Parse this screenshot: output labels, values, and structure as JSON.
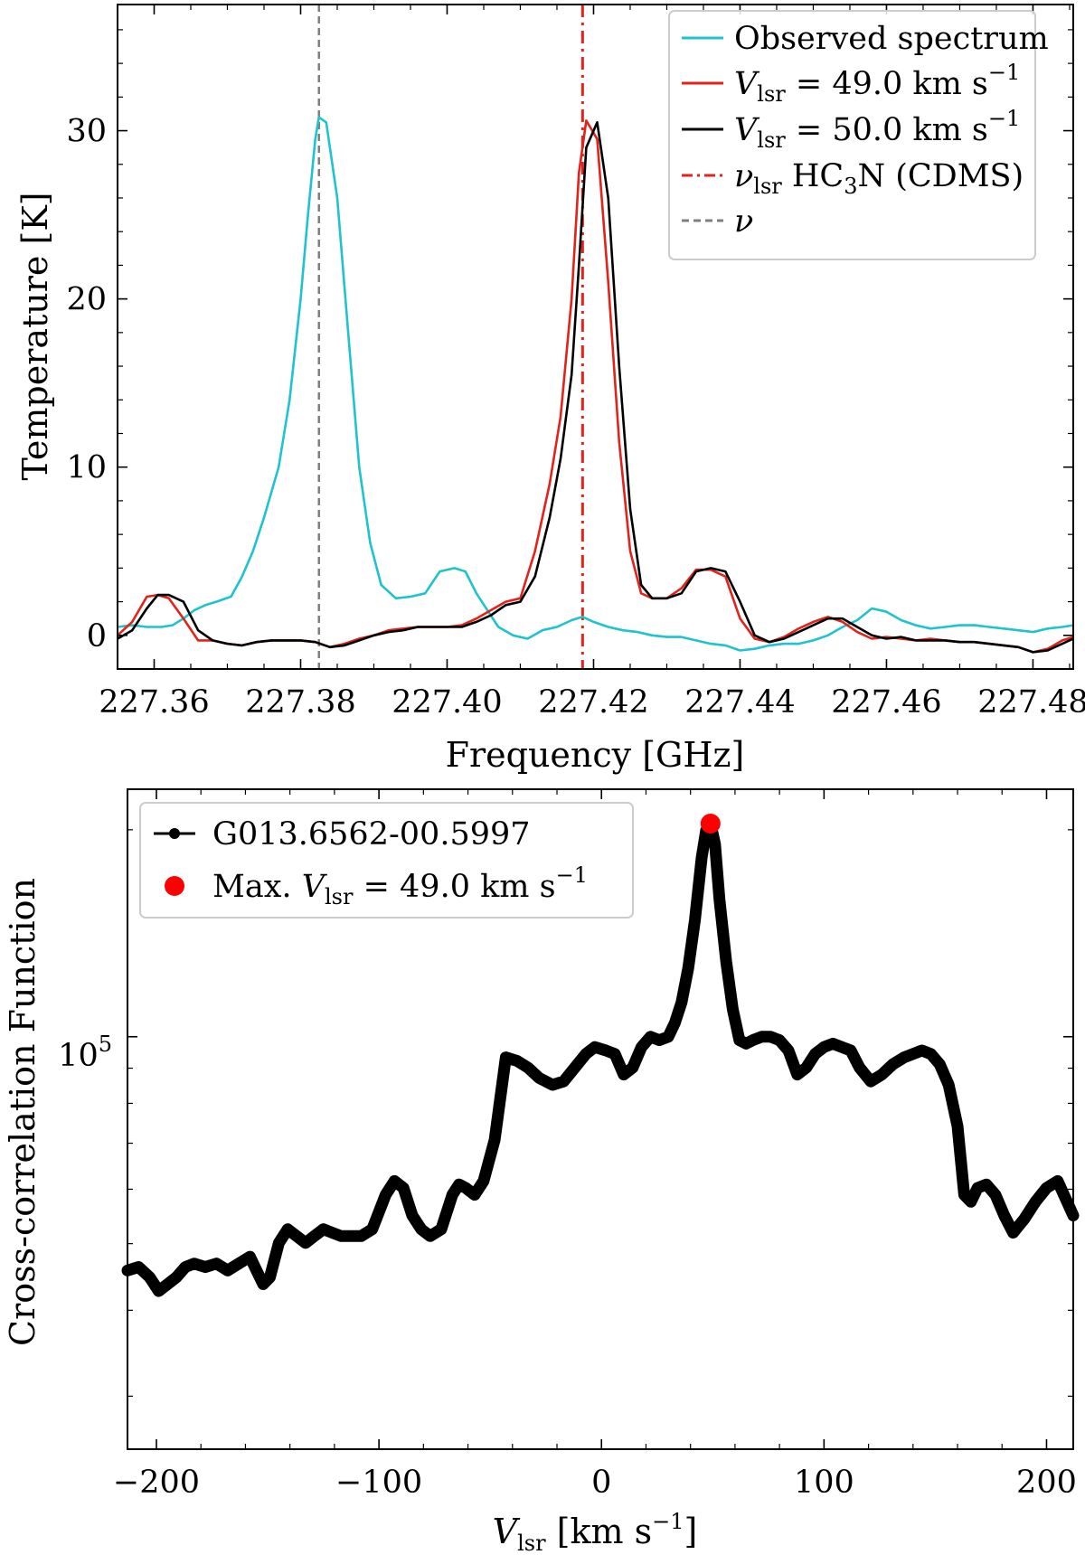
{
  "chart_data": [
    {
      "type": "line",
      "xlabel": "Frequency [GHz]",
      "ylabel": "Temperature [K]",
      "xlim": [
        227.355,
        227.4855
      ],
      "ylim": [
        -2.0,
        37.5
      ],
      "xticks": [
        227.36,
        227.38,
        227.4,
        227.42,
        227.44,
        227.46,
        227.48
      ],
      "xtick_labels": [
        "227.36",
        "227.38",
        "227.40",
        "227.42",
        "227.44",
        "227.46",
        "227.48"
      ],
      "yticks": [
        0,
        10,
        20,
        30
      ],
      "ytick_labels": [
        "0",
        "10",
        "20",
        "30"
      ],
      "legend_position": "top-right",
      "vlines": [
        {
          "name": "nu_lsr_hc3n",
          "x": 227.4185,
          "color": "#e0231c",
          "style": "dashdot"
        },
        {
          "name": "nu",
          "x": 227.3825,
          "color": "#7f7f7f",
          "style": "dashed"
        }
      ],
      "series": [
        {
          "name": "Observed spectrum",
          "legend": "Observed spectrum",
          "color": "#1fc3cd",
          "x": [
            227.355,
            227.357,
            227.359,
            227.361,
            227.3625,
            227.364,
            227.3655,
            227.367,
            227.3685,
            227.3705,
            227.372,
            227.3735,
            227.375,
            227.377,
            227.3785,
            227.38,
            227.381,
            227.382,
            227.3825,
            227.3835,
            227.385,
            227.3865,
            227.388,
            227.3895,
            227.391,
            227.393,
            227.395,
            227.397,
            227.399,
            227.401,
            227.4025,
            227.404,
            227.4055,
            227.407,
            227.409,
            227.411,
            227.413,
            227.415,
            227.417,
            227.4185,
            227.42,
            227.422,
            227.424,
            227.426,
            227.428,
            227.43,
            227.432,
            227.434,
            227.436,
            227.438,
            227.44,
            227.442,
            227.444,
            227.446,
            227.448,
            227.45,
            227.452,
            227.454,
            227.456,
            227.458,
            227.46,
            227.462,
            227.464,
            227.466,
            227.468,
            227.47,
            227.472,
            227.474,
            227.476,
            227.478,
            227.48,
            227.482,
            227.484,
            227.4855
          ],
          "y": [
            0.5,
            0.6,
            0.5,
            0.5,
            0.6,
            1.0,
            1.5,
            1.8,
            2.0,
            2.3,
            3.5,
            5.0,
            7.0,
            10.0,
            14.0,
            20.0,
            25.0,
            29.5,
            30.8,
            30.5,
            26.0,
            18.0,
            10.0,
            5.5,
            3.0,
            2.2,
            2.3,
            2.5,
            3.8,
            4.0,
            3.8,
            2.5,
            1.5,
            0.5,
            0.0,
            -0.2,
            0.3,
            0.5,
            0.9,
            1.1,
            0.8,
            0.5,
            0.3,
            0.2,
            0.0,
            -0.1,
            -0.1,
            -0.3,
            -0.5,
            -0.6,
            -0.9,
            -0.8,
            -0.6,
            -0.5,
            -0.5,
            -0.3,
            0.0,
            0.5,
            0.9,
            1.6,
            1.4,
            0.9,
            0.6,
            0.4,
            0.5,
            0.6,
            0.6,
            0.5,
            0.4,
            0.3,
            0.2,
            0.4,
            0.5,
            0.6
          ]
        },
        {
          "name": "Vlsr 49.0",
          "legend_prefix": "V",
          "legend_sub": "lsr",
          "legend_body": " = 49.0 km s",
          "legend_sup": "−1",
          "color": "#e0231c",
          "x": [
            227.355,
            227.357,
            227.359,
            227.3605,
            227.362,
            227.364,
            227.366,
            227.368,
            227.37,
            227.372,
            227.374,
            227.376,
            227.378,
            227.38,
            227.382,
            227.384,
            227.386,
            227.388,
            227.39,
            227.392,
            227.394,
            227.396,
            227.398,
            227.4,
            227.402,
            227.404,
            227.406,
            227.408,
            227.41,
            227.412,
            227.414,
            227.4155,
            227.417,
            227.418,
            227.419,
            227.4205,
            227.422,
            227.4235,
            227.425,
            227.4265,
            227.428,
            227.43,
            227.432,
            227.434,
            227.436,
            227.438,
            227.44,
            227.442,
            227.444,
            227.446,
            227.448,
            227.45,
            227.452,
            227.454,
            227.456,
            227.458,
            227.46,
            227.462,
            227.464,
            227.466,
            227.468,
            227.47,
            227.472,
            227.474,
            227.476,
            227.478,
            227.48,
            227.482,
            227.484,
            227.4855
          ],
          "y": [
            0.0,
            0.8,
            2.3,
            2.4,
            2.2,
            1.0,
            -0.3,
            -0.3,
            -0.5,
            -0.6,
            -0.4,
            -0.3,
            -0.3,
            -0.3,
            -0.4,
            -0.7,
            -0.5,
            -0.2,
            0.0,
            0.3,
            0.4,
            0.5,
            0.5,
            0.5,
            0.6,
            1.0,
            1.5,
            2.0,
            2.2,
            5.0,
            9.0,
            13.0,
            20.0,
            27.5,
            30.6,
            29.5,
            21.0,
            11.5,
            5.0,
            2.5,
            2.2,
            2.2,
            2.8,
            3.9,
            3.9,
            3.5,
            1.0,
            -0.2,
            -0.4,
            -0.1,
            0.4,
            0.8,
            1.1,
            0.8,
            0.2,
            -0.2,
            -0.1,
            -0.2,
            -0.3,
            -0.2,
            -0.3,
            -0.4,
            -0.4,
            -0.5,
            -0.6,
            -0.7,
            -1.0,
            -0.8,
            -0.3,
            -0.1
          ]
        },
        {
          "name": "Vlsr 50.0",
          "legend_prefix": "V",
          "legend_sub": "lsr",
          "legend_body": " = 50.0 km s",
          "legend_sup": "−1",
          "color": "#000000",
          "x": [
            227.355,
            227.357,
            227.359,
            227.3605,
            227.362,
            227.364,
            227.366,
            227.368,
            227.37,
            227.372,
            227.374,
            227.376,
            227.378,
            227.38,
            227.382,
            227.384,
            227.386,
            227.388,
            227.39,
            227.392,
            227.394,
            227.396,
            227.398,
            227.4,
            227.402,
            227.404,
            227.406,
            227.408,
            227.41,
            227.412,
            227.414,
            227.4155,
            227.417,
            227.418,
            227.419,
            227.4205,
            227.422,
            227.4235,
            227.425,
            227.4265,
            227.428,
            227.43,
            227.432,
            227.434,
            227.436,
            227.438,
            227.44,
            227.442,
            227.444,
            227.446,
            227.448,
            227.45,
            227.452,
            227.454,
            227.456,
            227.458,
            227.46,
            227.462,
            227.464,
            227.466,
            227.468,
            227.47,
            227.472,
            227.474,
            227.476,
            227.478,
            227.48,
            227.482,
            227.484,
            227.4855
          ],
          "y": [
            -0.2,
            0.3,
            1.6,
            2.4,
            2.4,
            2.0,
            0.3,
            -0.3,
            -0.5,
            -0.6,
            -0.4,
            -0.3,
            -0.3,
            -0.3,
            -0.4,
            -0.7,
            -0.6,
            -0.3,
            0.0,
            0.2,
            0.3,
            0.5,
            0.5,
            0.5,
            0.5,
            0.8,
            1.2,
            1.8,
            2.0,
            3.5,
            7.0,
            10.5,
            15.5,
            22.0,
            29.0,
            30.5,
            26.0,
            16.0,
            7.5,
            3.0,
            2.2,
            2.2,
            2.5,
            3.8,
            4.0,
            3.8,
            2.0,
            0.0,
            -0.4,
            -0.2,
            0.2,
            0.6,
            1.0,
            1.0,
            0.5,
            0.0,
            -0.2,
            -0.1,
            -0.3,
            -0.3,
            -0.3,
            -0.4,
            -0.4,
            -0.5,
            -0.6,
            -0.7,
            -1.0,
            -0.9,
            -0.5,
            -0.2
          ]
        }
      ],
      "legend_vline_label_main": "ν",
      "legend_vline_label_sub": "lsr",
      "legend_vline_label_rest": " HC",
      "legend_vline_label_sub2": "3",
      "legend_vline_label_end": "N (CDMS)",
      "legend_nu_label": "ν"
    },
    {
      "type": "line",
      "xlabel_main": "V",
      "xlabel_sub": "lsr",
      "xlabel_rest": " [km s",
      "xlabel_sup": "−1",
      "xlabel_end": "]",
      "ylabel": "Cross-correlation Function",
      "yscale": "log",
      "xlim": [
        -213,
        212
      ],
      "ylim_log10": [
        4.4,
        5.36
      ],
      "xticks": [
        -200,
        -100,
        0,
        100,
        200
      ],
      "xtick_labels": [
        "−200",
        "−100",
        "0",
        "100",
        "200"
      ],
      "yticks_log10": [
        5
      ],
      "ytick_base": "10",
      "ytick_exp": "5",
      "legend_position": "top-left",
      "marker_point": {
        "x": 49.0,
        "log10_y": 5.31,
        "color": "#ff0000"
      },
      "series": [
        {
          "name": "G013.6562-00.5997",
          "legend": "G013.6562-00.5997",
          "color": "#000000",
          "x": [
            -213,
            -208,
            -203,
            -199,
            -195,
            -191,
            -187,
            -183,
            -178,
            -173,
            -168,
            -163,
            -158,
            -155,
            -152,
            -149,
            -145,
            -141,
            -137,
            -133,
            -129,
            -125,
            -121,
            -117,
            -113,
            -108,
            -103,
            -97,
            -93,
            -89,
            -85,
            -81,
            -77,
            -72,
            -67,
            -64,
            -61,
            -57,
            -53,
            -48,
            -43,
            -38,
            -33,
            -28,
            -22,
            -17,
            -12,
            -7,
            -3,
            2,
            6,
            10,
            14,
            18,
            22,
            26,
            30,
            33,
            36,
            39,
            42,
            45,
            47,
            49,
            51,
            53,
            56,
            59,
            62,
            65,
            68,
            72,
            76,
            80,
            84,
            88,
            92,
            96,
            100,
            104,
            108,
            112,
            116,
            121,
            126,
            131,
            136,
            140,
            144,
            148,
            152,
            156,
            160,
            163,
            166,
            169,
            173,
            177,
            181,
            185,
            190,
            195,
            200,
            205,
            212
          ],
          "log10_y": [
            4.66,
            4.665,
            4.65,
            4.63,
            4.64,
            4.65,
            4.665,
            4.67,
            4.665,
            4.67,
            4.66,
            4.67,
            4.68,
            4.66,
            4.64,
            4.65,
            4.7,
            4.72,
            4.71,
            4.7,
            4.71,
            4.72,
            4.715,
            4.71,
            4.71,
            4.71,
            4.72,
            4.77,
            4.79,
            4.78,
            4.74,
            4.72,
            4.71,
            4.72,
            4.77,
            4.785,
            4.78,
            4.77,
            4.79,
            4.85,
            4.97,
            4.965,
            4.955,
            4.94,
            4.93,
            4.935,
            4.955,
            4.975,
            4.985,
            4.98,
            4.975,
            4.945,
            4.955,
            4.985,
            5.0,
            4.995,
            5.0,
            5.02,
            5.05,
            5.1,
            5.17,
            5.26,
            5.3,
            5.31,
            5.28,
            5.2,
            5.11,
            5.04,
            4.995,
            4.99,
            4.995,
            5.0,
            5.0,
            4.995,
            4.98,
            4.945,
            4.955,
            4.975,
            4.985,
            4.99,
            4.985,
            4.98,
            4.955,
            4.935,
            4.945,
            4.96,
            4.97,
            4.975,
            4.98,
            4.975,
            4.96,
            4.93,
            4.87,
            4.77,
            4.76,
            4.78,
            4.785,
            4.77,
            4.74,
            4.715,
            4.735,
            4.76,
            4.78,
            4.79,
            4.74
          ]
        }
      ],
      "legend_max_main": "Max. ",
      "legend_max_v": "V",
      "legend_max_sub": "lsr",
      "legend_max_rest": " = 49.0 km s",
      "legend_max_sup": "−1"
    }
  ]
}
